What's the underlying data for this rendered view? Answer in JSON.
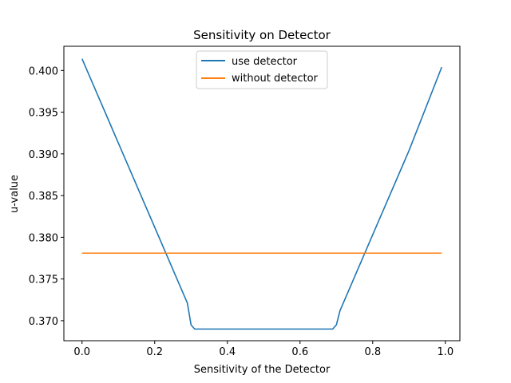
{
  "chart_data": {
    "type": "line",
    "title": "Sensitivity on Detector",
    "xlabel": "Sensitivity of the Detector",
    "ylabel": "u-value",
    "xlim": [
      -0.05,
      1.04
    ],
    "ylim": [
      0.3676,
      0.4029
    ],
    "xticks": [
      0.0,
      0.2,
      0.4,
      0.6,
      0.8,
      1.0
    ],
    "xtick_labels": [
      "0.0",
      "0.2",
      "0.4",
      "0.6",
      "0.8",
      "1.0"
    ],
    "yticks": [
      0.37,
      0.375,
      0.38,
      0.385,
      0.39,
      0.395,
      0.4
    ],
    "ytick_labels": [
      "0.370",
      "0.375",
      "0.380",
      "0.385",
      "0.390",
      "0.395",
      "0.400"
    ],
    "grid": false,
    "legend_position": "top-center",
    "series": [
      {
        "name": "use detector",
        "color": "#1f77b4",
        "x": [
          0.0,
          0.1,
          0.2,
          0.29,
          0.3,
          0.31,
          0.4,
          0.5,
          0.6,
          0.69,
          0.7,
          0.71,
          0.8,
          0.9,
          0.99
        ],
        "y": [
          0.4014,
          0.3913,
          0.3812,
          0.3721,
          0.3695,
          0.369,
          0.369,
          0.369,
          0.369,
          0.369,
          0.3695,
          0.3712,
          0.3803,
          0.3904,
          0.4004
        ]
      },
      {
        "name": "without detector",
        "color": "#ff7f0e",
        "x": [
          0.0,
          0.99
        ],
        "y": [
          0.3781,
          0.3781
        ]
      }
    ]
  }
}
